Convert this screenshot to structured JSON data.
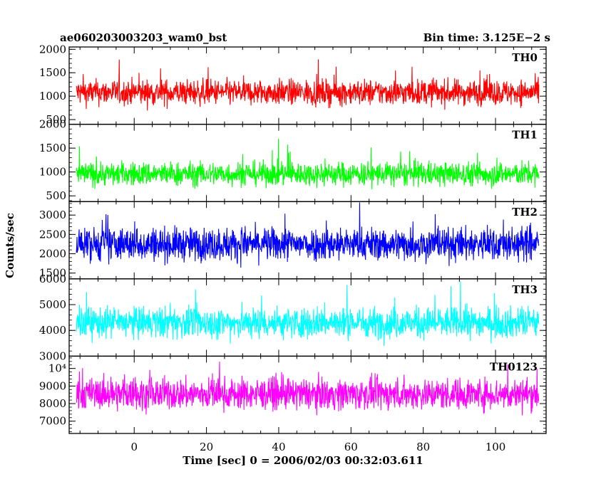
{
  "header": {
    "title": "ae060203003203_wam0_bst",
    "bin_time": "Bin time: 3.125E−2 s"
  },
  "chart_data": {
    "type": "line",
    "xlabel": "Time [sec] 0 = 2006/02/03 00:32:03.611",
    "ylabel": "Counts/sec",
    "xlim": [
      -18,
      114
    ],
    "x_ticks": [
      0,
      20,
      40,
      60,
      80,
      100
    ],
    "x_minor_step": 5,
    "data_range": [
      -16,
      112
    ],
    "panels": [
      {
        "name": "TH0",
        "color": "#ff0000",
        "ylim": [
          400,
          2050
        ],
        "yticks": [
          {
            "v": 500,
            "label": "500"
          },
          {
            "v": 1000,
            "label": "1000"
          },
          {
            "v": 1500,
            "label": "1500"
          },
          {
            "v": 2000,
            "label": "2000"
          }
        ],
        "mean": 1080,
        "noise_sd": 190
      },
      {
        "name": "TH1",
        "color": "#00ff00",
        "ylim": [
          380,
          2000
        ],
        "yticks": [
          {
            "v": 500,
            "label": "500"
          },
          {
            "v": 1000,
            "label": "1000"
          },
          {
            "v": 1500,
            "label": "1500"
          },
          {
            "v": 2000,
            "label": "2000"
          }
        ],
        "mean": 960,
        "noise_sd": 175
      },
      {
        "name": "TH2",
        "color": "#0000ff",
        "ylim": [
          1350,
          3350
        ],
        "yticks": [
          {
            "v": 1500,
            "label": "1500"
          },
          {
            "v": 2000,
            "label": "2000"
          },
          {
            "v": 2500,
            "label": "2500"
          },
          {
            "v": 3000,
            "label": "3000"
          }
        ],
        "mean": 2250,
        "noise_sd": 300
      },
      {
        "name": "TH3",
        "color": "#00ffff",
        "ylim": [
          3000,
          6000
        ],
        "yticks": [
          {
            "v": 3000,
            "label": "3000"
          },
          {
            "v": 4000,
            "label": "4000"
          },
          {
            "v": 5000,
            "label": "5000"
          },
          {
            "v": 6000,
            "label": "6000"
          }
        ],
        "mean": 4300,
        "noise_sd": 420
      },
      {
        "name": "TH0123",
        "color": "#ff00ff",
        "ylim": [
          6300,
          10700
        ],
        "yticks": [
          {
            "v": 7000,
            "label": "7000"
          },
          {
            "v": 8000,
            "label": "8000"
          },
          {
            "v": 9000,
            "label": "9000"
          },
          {
            "v": 10000,
            "label": "10⁴"
          }
        ],
        "mean": 8550,
        "noise_sd": 620
      }
    ]
  }
}
